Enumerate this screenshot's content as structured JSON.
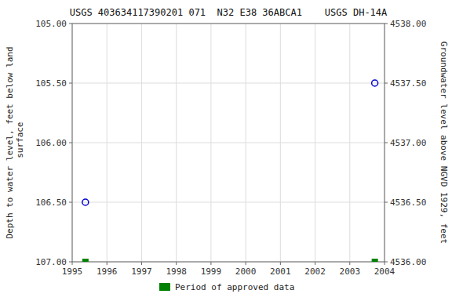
{
  "chart_data": {
    "type": "scatter",
    "title": "USGS 403634117390201 071  N32 E38 36ABCA1    USGS DH-14A",
    "y_label": "Depth to water level, feet below land\n surface",
    "y2_label": "Groundwater level above NGVD 1929, feet",
    "xlim": [
      1995.0,
      2004.0
    ],
    "xticks": [
      1995,
      1996,
      1997,
      1998,
      1999,
      2000,
      2001,
      2002,
      2003,
      2004
    ],
    "ylim": [
      107.0,
      105.0
    ],
    "yticks": [
      {
        "value": 105.0,
        "label": "105.00"
      },
      {
        "value": 105.5,
        "label": "105.50"
      },
      {
        "value": 106.0,
        "label": "106.00"
      },
      {
        "value": 106.5,
        "label": "106.50"
      },
      {
        "value": 107.0,
        "label": "107.00"
      }
    ],
    "y2lim": [
      4536.0,
      4538.0
    ],
    "y2ticks": [
      {
        "value": 4538.0,
        "label": "4538.00"
      },
      {
        "value": 4537.5,
        "label": "4537.50"
      },
      {
        "value": 4537.0,
        "label": "4537.00"
      },
      {
        "value": 4536.5,
        "label": "4536.50"
      },
      {
        "value": 4536.0,
        "label": "4536.00"
      }
    ],
    "grid": true,
    "legend": "bottom",
    "series": [
      {
        "color": "#0000cc",
        "marker": "circle-open",
        "x": [
          1995.38,
          2003.72
        ],
        "values": [
          106.5,
          105.5
        ]
      },
      {
        "name": "Period of approved data",
        "color": "#008000",
        "marker": "square",
        "x": [
          1995.38,
          2003.72
        ],
        "values": [
          107.0,
          107.0
        ]
      }
    ]
  }
}
